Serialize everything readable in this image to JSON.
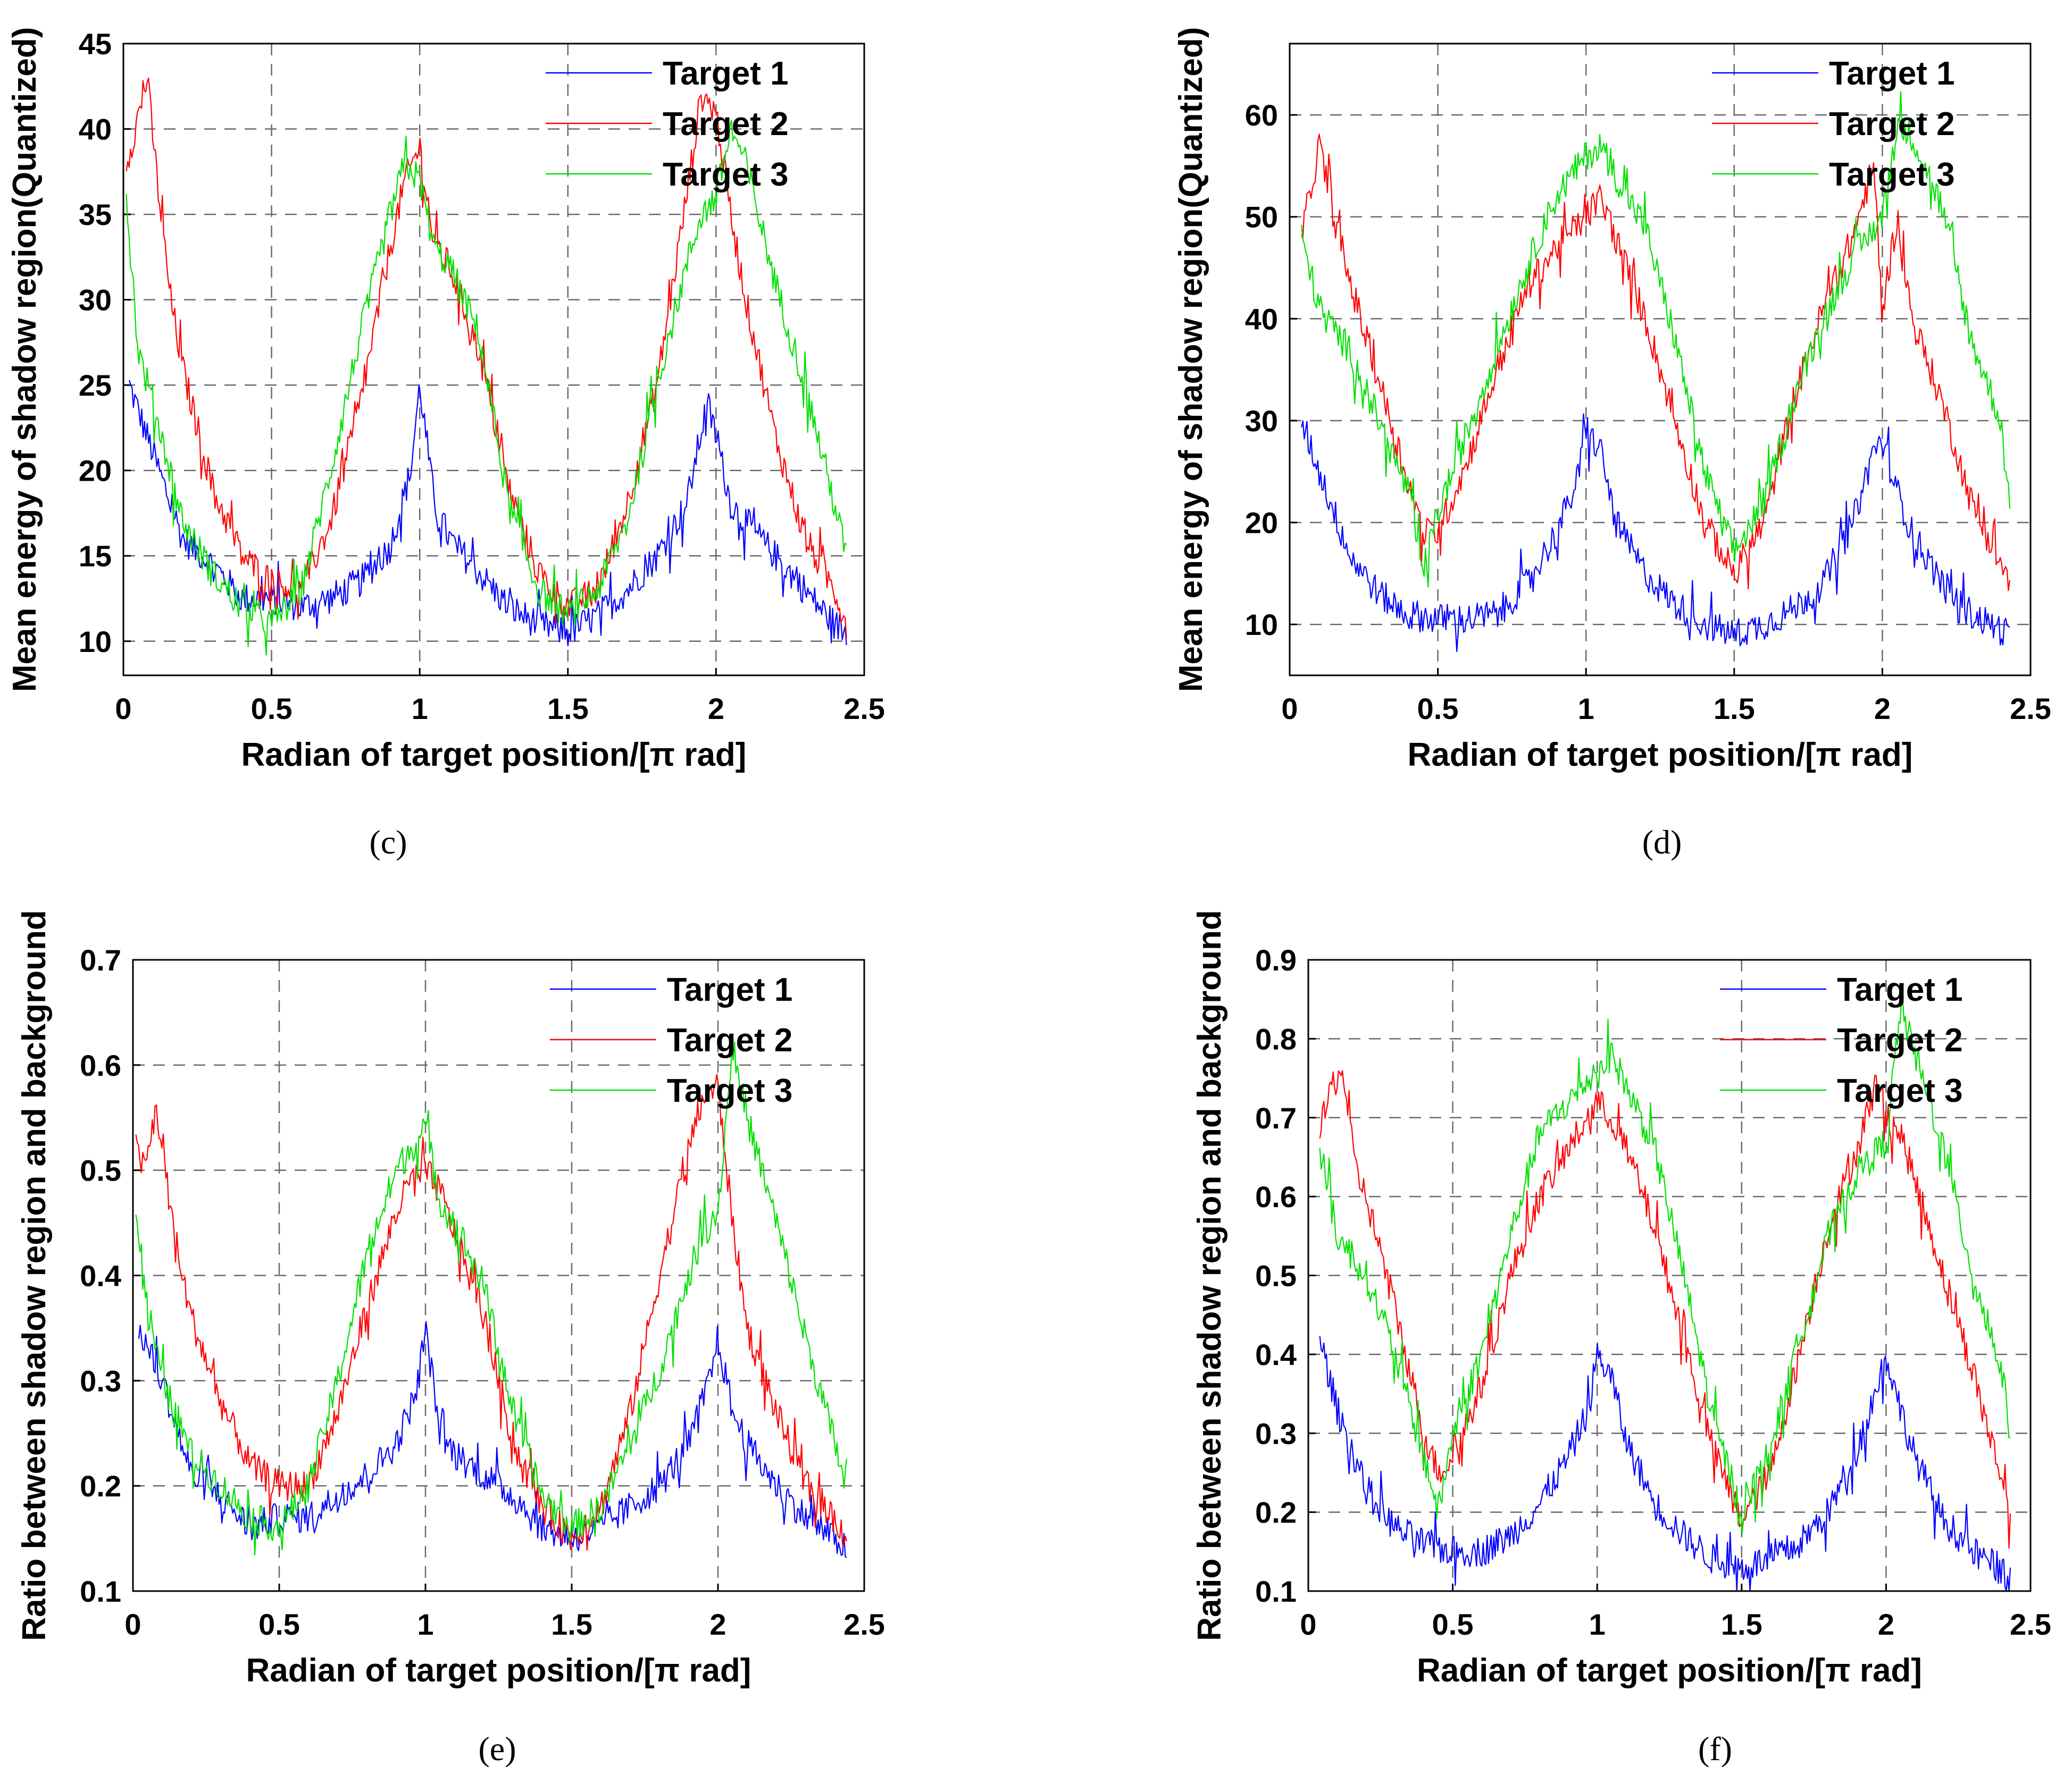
{
  "colors": {
    "target1": "#0000ff",
    "target2": "#ff0000",
    "target3": "#00e000"
  },
  "chart_data": [
    {
      "type": "line",
      "caption": "(c)",
      "xlabel": "Radian of target position/[π rad]",
      "ylabel": "Mean energy of shadow region(Quantized)",
      "xlim": [
        0,
        2.5
      ],
      "ylim": [
        8,
        45
      ],
      "xticks": [
        "0",
        "0.5",
        "1",
        "1.5",
        "2",
        "2.5"
      ],
      "yticks": [
        "10",
        "15",
        "20",
        "25",
        "30",
        "35",
        "40",
        "45"
      ],
      "legend": [
        "Target 1",
        "Target 2",
        "Target 3"
      ],
      "series": [
        {
          "name": "Target 1",
          "x": [
            0.02,
            0.1,
            0.2,
            0.3,
            0.4,
            0.5,
            0.6,
            0.7,
            0.8,
            0.9,
            0.97,
            1.0,
            1.05,
            1.1,
            1.2,
            1.3,
            1.4,
            1.5,
            1.6,
            1.7,
            1.8,
            1.9,
            1.97,
            2.0,
            2.05,
            2.1,
            2.2,
            2.3,
            2.4,
            2.44
          ],
          "y": [
            25,
            21,
            16,
            14.5,
            12.5,
            12.5,
            12,
            12.5,
            13.5,
            15.5,
            20,
            25,
            18,
            16,
            14,
            12,
            11,
            10.5,
            11.5,
            13,
            15,
            18,
            24,
            22,
            18,
            17,
            15,
            13,
            11,
            10.5
          ]
        },
        {
          "name": "Target 2",
          "x": [
            0.01,
            0.04,
            0.08,
            0.12,
            0.16,
            0.2,
            0.3,
            0.4,
            0.5,
            0.6,
            0.7,
            0.8,
            0.9,
            0.95,
            1.0,
            1.05,
            1.1,
            1.2,
            1.3,
            1.4,
            1.5,
            1.6,
            1.7,
            1.8,
            1.9,
            1.95,
            2.0,
            2.05,
            2.1,
            2.2,
            2.3,
            2.4,
            2.44
          ],
          "y": [
            38,
            40,
            43,
            36,
            30,
            26,
            19,
            15,
            13.5,
            13,
            17,
            24,
            33,
            37,
            39,
            33,
            32,
            27,
            19,
            14,
            12,
            13,
            18,
            25,
            36,
            42,
            41,
            35,
            30,
            22,
            16,
            13,
            11
          ]
        },
        {
          "name": "Target 3",
          "x": [
            0.01,
            0.05,
            0.1,
            0.2,
            0.3,
            0.4,
            0.5,
            0.6,
            0.7,
            0.8,
            0.9,
            0.95,
            1.0,
            1.05,
            1.1,
            1.2,
            1.3,
            1.4,
            1.5,
            1.6,
            1.7,
            1.8,
            1.9,
            1.95,
            2.0,
            2.05,
            2.1,
            2.2,
            2.3,
            2.4,
            2.44
          ],
          "y": [
            36,
            27,
            24,
            17,
            14,
            12,
            11,
            13,
            20,
            28,
            35,
            38,
            37,
            33,
            32,
            28,
            18,
            13,
            11.5,
            13,
            17,
            25,
            32,
            35,
            36,
            40,
            38,
            31,
            25,
            18,
            15
          ]
        }
      ]
    },
    {
      "type": "line",
      "caption": "(d)",
      "xlabel": "Radian of target position/[π rad]",
      "ylabel": "Mean energy of shadow region(Quantized)",
      "xlim": [
        0,
        2.5
      ],
      "ylim": [
        5,
        67
      ],
      "xticks": [
        "0",
        "0.5",
        "1",
        "1.5",
        "2",
        "2.5"
      ],
      "yticks": [
        "10",
        "20",
        "30",
        "40",
        "50",
        "60"
      ],
      "legend": [
        "Target 1",
        "Target 2",
        "Target 3"
      ],
      "series": [
        {
          "name": "Target 1",
          "x": [
            0.04,
            0.1,
            0.2,
            0.3,
            0.4,
            0.5,
            0.6,
            0.7,
            0.8,
            0.9,
            0.97,
            1.0,
            1.05,
            1.1,
            1.2,
            1.3,
            1.4,
            1.5,
            1.6,
            1.7,
            1.8,
            1.9,
            1.97,
            2.0,
            2.05,
            2.1,
            2.2,
            2.3,
            2.43
          ],
          "y": [
            30,
            25,
            17,
            13,
            11,
            10.5,
            10.5,
            11,
            14,
            19,
            24,
            29,
            27,
            20,
            15,
            12,
            10,
            9,
            10,
            11.5,
            14,
            20,
            27,
            28,
            23,
            19,
            14,
            11,
            9
          ]
        },
        {
          "name": "Target 2",
          "x": [
            0.04,
            0.08,
            0.1,
            0.15,
            0.2,
            0.3,
            0.4,
            0.45,
            0.5,
            0.6,
            0.7,
            0.8,
            0.9,
            1.0,
            1.05,
            1.1,
            1.2,
            1.3,
            1.4,
            1.5,
            1.6,
            1.7,
            1.8,
            1.9,
            1.97,
            2.0,
            2.05,
            2.1,
            2.2,
            2.3,
            2.43
          ],
          "y": [
            48,
            54,
            57,
            50,
            44,
            34,
            24,
            19,
            19,
            26,
            35,
            43,
            47,
            50,
            52,
            48,
            40,
            30,
            20,
            15,
            20,
            32,
            41,
            48,
            55,
            41,
            50,
            40,
            32,
            22,
            14
          ]
        },
        {
          "name": "Target 3",
          "x": [
            0.04,
            0.1,
            0.2,
            0.3,
            0.4,
            0.45,
            0.5,
            0.6,
            0.7,
            0.8,
            0.9,
            1.0,
            1.05,
            1.1,
            1.2,
            1.3,
            1.4,
            1.5,
            1.6,
            1.7,
            1.8,
            1.9,
            2.0,
            2.05,
            2.1,
            2.2,
            2.3,
            2.4,
            2.43
          ],
          "y": [
            48,
            41,
            37,
            30,
            23,
            15,
            21,
            29,
            37,
            45,
            52,
            56,
            57,
            54,
            49,
            38,
            25,
            17,
            22,
            32,
            40,
            46,
            50,
            59,
            58,
            51,
            38,
            30,
            21
          ]
        }
      ]
    },
    {
      "type": "line",
      "caption": "(e)",
      "xlabel": "Radian of target position/[π rad]",
      "ylabel": "Ratio between shadow region and background",
      "xlim": [
        0,
        2.5
      ],
      "ylim": [
        0.1,
        0.7
      ],
      "xticks": [
        "0",
        "0.5",
        "1",
        "1.5",
        "2",
        "2.5"
      ],
      "yticks": [
        "0.1",
        "0.2",
        "0.3",
        "0.4",
        "0.5",
        "0.6",
        "0.7"
      ],
      "legend": [
        "Target 1",
        "Target 2",
        "Target 3"
      ],
      "series": [
        {
          "name": "Target 1",
          "x": [
            0.02,
            0.1,
            0.2,
            0.3,
            0.4,
            0.5,
            0.6,
            0.7,
            0.8,
            0.9,
            0.97,
            1.0,
            1.05,
            1.1,
            1.2,
            1.3,
            1.4,
            1.5,
            1.6,
            1.7,
            1.8,
            1.9,
            1.97,
            2.0,
            2.05,
            2.1,
            2.2,
            2.3,
            2.4,
            2.44
          ],
          "y": [
            0.35,
            0.3,
            0.21,
            0.19,
            0.16,
            0.17,
            0.17,
            0.19,
            0.21,
            0.24,
            0.29,
            0.35,
            0.25,
            0.23,
            0.21,
            0.19,
            0.16,
            0.15,
            0.16,
            0.18,
            0.2,
            0.24,
            0.3,
            0.34,
            0.27,
            0.24,
            0.2,
            0.17,
            0.15,
            0.14
          ]
        },
        {
          "name": "Target 2",
          "x": [
            0.01,
            0.04,
            0.08,
            0.12,
            0.16,
            0.2,
            0.3,
            0.4,
            0.5,
            0.6,
            0.7,
            0.8,
            0.9,
            0.95,
            1.0,
            1.05,
            1.1,
            1.2,
            1.3,
            1.4,
            1.5,
            1.6,
            1.7,
            1.8,
            1.9,
            1.95,
            2.0,
            2.05,
            2.1,
            2.2,
            2.3,
            2.4,
            2.44
          ],
          "y": [
            0.52,
            0.5,
            0.56,
            0.48,
            0.41,
            0.36,
            0.28,
            0.22,
            0.2,
            0.2,
            0.27,
            0.37,
            0.46,
            0.49,
            0.5,
            0.48,
            0.44,
            0.36,
            0.24,
            0.18,
            0.15,
            0.18,
            0.27,
            0.4,
            0.52,
            0.57,
            0.58,
            0.45,
            0.35,
            0.27,
            0.2,
            0.17,
            0.15
          ]
        },
        {
          "name": "Target 3",
          "x": [
            0.01,
            0.05,
            0.1,
            0.2,
            0.3,
            0.4,
            0.5,
            0.6,
            0.7,
            0.8,
            0.9,
            0.95,
            1.0,
            1.05,
            1.1,
            1.2,
            1.3,
            1.4,
            1.5,
            1.6,
            1.7,
            1.8,
            1.9,
            1.95,
            2.0,
            2.05,
            2.1,
            2.2,
            2.3,
            2.4,
            2.44
          ],
          "y": [
            0.46,
            0.37,
            0.3,
            0.23,
            0.2,
            0.17,
            0.16,
            0.2,
            0.3,
            0.42,
            0.5,
            0.52,
            0.54,
            0.47,
            0.45,
            0.39,
            0.27,
            0.19,
            0.16,
            0.18,
            0.24,
            0.31,
            0.4,
            0.44,
            0.46,
            0.62,
            0.55,
            0.45,
            0.34,
            0.24,
            0.2
          ]
        }
      ]
    },
    {
      "type": "line",
      "caption": "(f)",
      "xlabel": "Radian of target position/[π rad]",
      "ylabel": "Ratio between shadow region and background",
      "xlim": [
        0,
        2.5
      ],
      "ylim": [
        0.1,
        0.9
      ],
      "xticks": [
        "0",
        "0.5",
        "1",
        "1.5",
        "2",
        "2.5"
      ],
      "yticks": [
        "0.1",
        "0.2",
        "0.3",
        "0.4",
        "0.5",
        "0.6",
        "0.7",
        "0.8",
        "0.9"
      ],
      "legend": [
        "Target 1",
        "Target 2",
        "Target 3"
      ],
      "series": [
        {
          "name": "Target 1",
          "x": [
            0.04,
            0.1,
            0.2,
            0.3,
            0.4,
            0.5,
            0.6,
            0.7,
            0.8,
            0.9,
            0.97,
            1.0,
            1.05,
            1.1,
            1.2,
            1.3,
            1.4,
            1.5,
            1.6,
            1.7,
            1.8,
            1.9,
            1.97,
            2.0,
            2.05,
            2.1,
            2.2,
            2.3,
            2.43
          ],
          "y": [
            0.42,
            0.33,
            0.23,
            0.18,
            0.16,
            0.15,
            0.15,
            0.17,
            0.21,
            0.27,
            0.33,
            0.4,
            0.37,
            0.29,
            0.21,
            0.17,
            0.14,
            0.13,
            0.14,
            0.16,
            0.2,
            0.28,
            0.36,
            0.4,
            0.33,
            0.27,
            0.19,
            0.15,
            0.12
          ]
        },
        {
          "name": "Target 2",
          "x": [
            0.04,
            0.08,
            0.12,
            0.16,
            0.2,
            0.3,
            0.4,
            0.45,
            0.5,
            0.6,
            0.7,
            0.8,
            0.9,
            1.0,
            1.05,
            1.1,
            1.2,
            1.3,
            1.4,
            1.5,
            1.6,
            1.7,
            1.8,
            1.9,
            1.97,
            2.0,
            2.05,
            2.1,
            2.2,
            2.3,
            2.43
          ],
          "y": [
            0.68,
            0.74,
            0.76,
            0.64,
            0.6,
            0.46,
            0.3,
            0.25,
            0.27,
            0.36,
            0.5,
            0.6,
            0.66,
            0.72,
            0.7,
            0.66,
            0.56,
            0.42,
            0.28,
            0.19,
            0.25,
            0.4,
            0.56,
            0.66,
            0.75,
            0.7,
            0.68,
            0.62,
            0.5,
            0.38,
            0.2
          ]
        },
        {
          "name": "Target 3",
          "x": [
            0.04,
            0.1,
            0.2,
            0.3,
            0.4,
            0.45,
            0.5,
            0.6,
            0.7,
            0.8,
            0.9,
            1.0,
            1.05,
            1.1,
            1.2,
            1.3,
            1.4,
            1.5,
            1.6,
            1.7,
            1.8,
            1.9,
            2.0,
            2.05,
            2.1,
            2.2,
            2.3,
            2.4,
            2.43
          ],
          "y": [
            0.66,
            0.55,
            0.5,
            0.4,
            0.27,
            0.2,
            0.3,
            0.4,
            0.55,
            0.68,
            0.72,
            0.76,
            0.78,
            0.74,
            0.66,
            0.5,
            0.32,
            0.2,
            0.28,
            0.42,
            0.55,
            0.63,
            0.67,
            0.84,
            0.78,
            0.66,
            0.5,
            0.38,
            0.3
          ]
        }
      ]
    }
  ]
}
